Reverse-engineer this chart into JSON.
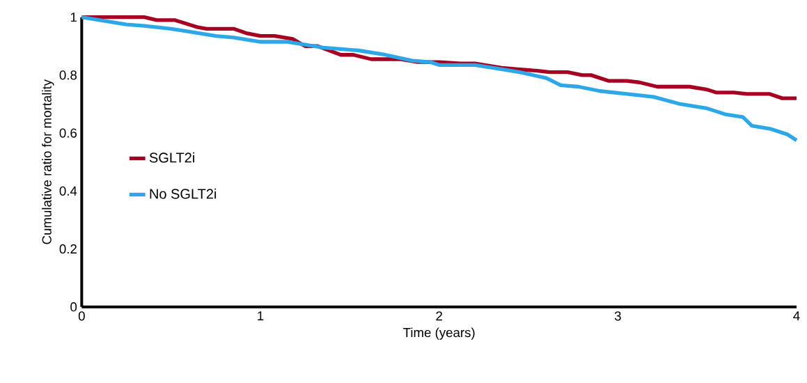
{
  "chart_data": {
    "type": "line",
    "xlabel": "Time (years)",
    "ylabel": "Cumulative ratio for mortality",
    "xlim": [
      0,
      4
    ],
    "xticks": [
      0,
      1,
      2,
      3,
      4
    ],
    "ylim": [
      0,
      1
    ],
    "yticks": [
      0,
      0.2,
      0.4,
      0.6,
      0.8,
      1
    ],
    "legend": "left",
    "grid": false,
    "marker": "none",
    "line_style": "solid",
    "series": [
      {
        "name": "SGLT2i",
        "color": "#a50021",
        "x": [
          0,
          0.35,
          0.42,
          0.52,
          0.65,
          0.7,
          0.85,
          0.92,
          1.0,
          1.08,
          1.18,
          1.25,
          1.32,
          1.45,
          1.52,
          1.62,
          1.78,
          1.88,
          2.0,
          2.12,
          2.2,
          2.35,
          2.45,
          2.55,
          2.62,
          2.72,
          2.8,
          2.85,
          2.95,
          3.05,
          3.12,
          3.22,
          3.4,
          3.5,
          3.55,
          3.65,
          3.72,
          3.85,
          3.92,
          4.0
        ],
        "values": [
          1.0,
          1.0,
          0.99,
          0.99,
          0.965,
          0.96,
          0.96,
          0.945,
          0.935,
          0.935,
          0.925,
          0.9,
          0.9,
          0.87,
          0.87,
          0.855,
          0.855,
          0.845,
          0.845,
          0.84,
          0.84,
          0.825,
          0.82,
          0.815,
          0.81,
          0.81,
          0.8,
          0.8,
          0.78,
          0.78,
          0.775,
          0.76,
          0.76,
          0.75,
          0.74,
          0.74,
          0.735,
          0.735,
          0.72,
          0.72
        ]
      },
      {
        "name": "No SGLT2i",
        "color": "#2ea7e8",
        "x": [
          0,
          0.1,
          0.25,
          0.35,
          0.5,
          0.6,
          0.75,
          0.85,
          1.0,
          1.15,
          1.25,
          1.35,
          1.45,
          1.55,
          1.7,
          1.85,
          1.95,
          2.0,
          2.2,
          2.3,
          2.45,
          2.6,
          2.68,
          2.78,
          2.9,
          3.05,
          3.2,
          3.35,
          3.5,
          3.6,
          3.7,
          3.75,
          3.85,
          3.95,
          4.0
        ],
        "values": [
          1.0,
          0.99,
          0.975,
          0.97,
          0.96,
          0.95,
          0.935,
          0.93,
          0.915,
          0.915,
          0.905,
          0.895,
          0.89,
          0.885,
          0.87,
          0.85,
          0.845,
          0.835,
          0.835,
          0.825,
          0.81,
          0.79,
          0.765,
          0.76,
          0.745,
          0.735,
          0.725,
          0.7,
          0.685,
          0.665,
          0.655,
          0.625,
          0.615,
          0.595,
          0.575
        ]
      }
    ]
  }
}
